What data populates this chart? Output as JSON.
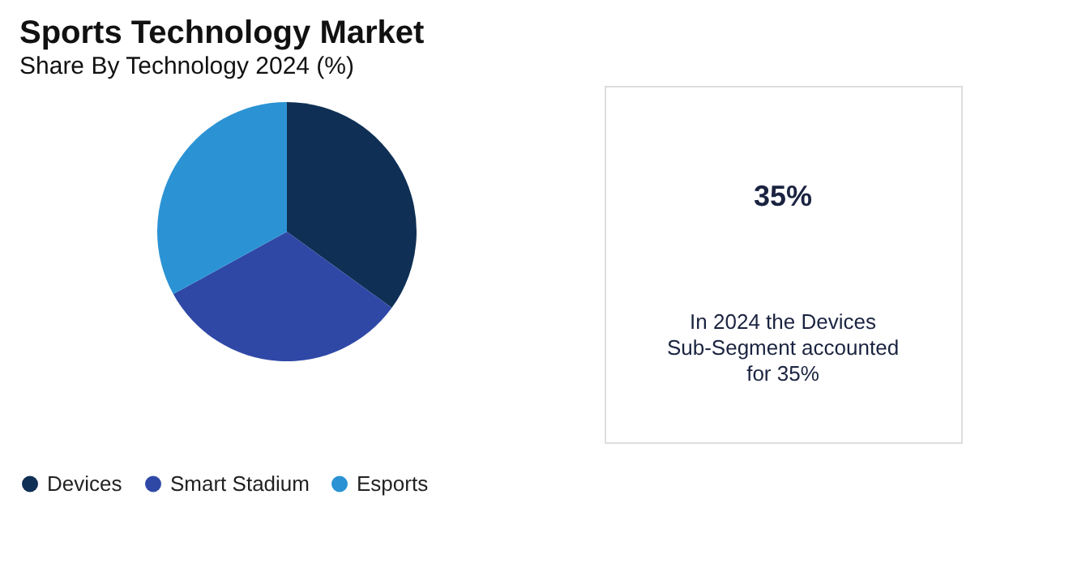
{
  "chart_data": {
    "type": "pie",
    "title": "Sports Technology Market",
    "subtitle": "Share By Technology 2024 (%)",
    "categories": [
      "Devices",
      "Smart Stadium",
      "Esports"
    ],
    "values": [
      35,
      32,
      33
    ],
    "colors": [
      "#0f2f55",
      "#2f48a6",
      "#2b93d4"
    ],
    "legend": "bottom",
    "annotations": [
      "35%",
      "In 2024 the Devices Sub-Segment accounted for 35%"
    ]
  }
}
